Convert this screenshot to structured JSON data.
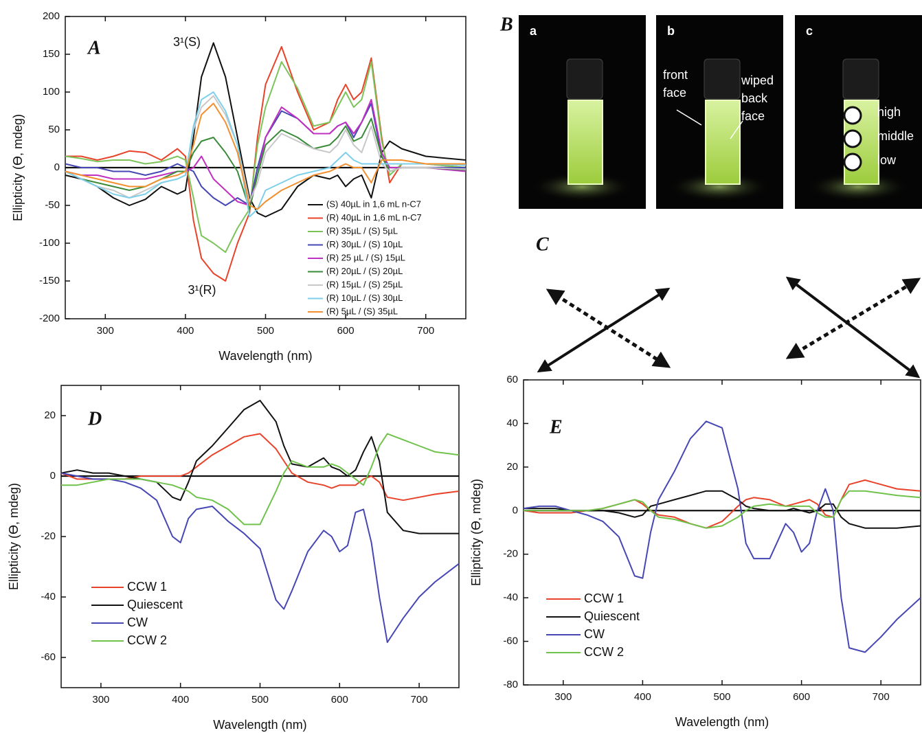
{
  "chart_data": [
    {
      "type": "line",
      "panel_label": "A",
      "x_label": "Wavelength (nm)",
      "y_label": "Ellipticity (ϴ, mdeg)",
      "annotations": [
        "3¹(S)",
        "3¹(R)"
      ],
      "xlim": [
        250,
        750
      ],
      "ylim": [
        -200,
        200
      ],
      "xticks": [
        300,
        400,
        500,
        600,
        700
      ],
      "yticks": [
        -200,
        -150,
        -100,
        -50,
        0,
        50,
        100,
        150,
        200
      ],
      "legend": "lower right",
      "x": [
        250,
        270,
        290,
        310,
        330,
        350,
        370,
        390,
        400,
        410,
        420,
        435,
        450,
        465,
        480,
        490,
        500,
        520,
        540,
        560,
        580,
        590,
        600,
        610,
        620,
        632,
        645,
        655,
        670,
        700,
        750
      ],
      "series": [
        {
          "name": "(S) 40µL in 1,6 mL n-C7",
          "color": "#111111",
          "values": [
            -10,
            -15,
            -25,
            -40,
            -50,
            -42,
            -25,
            -35,
            -30,
            40,
            120,
            165,
            120,
            40,
            -40,
            -60,
            -65,
            -55,
            -25,
            -10,
            -15,
            -10,
            -25,
            -15,
            -10,
            -40,
            20,
            35,
            25,
            15,
            10
          ]
        },
        {
          "name": "(R) 40µL in 1,6 mL n-C7",
          "color": "#e8432a",
          "values": [
            15,
            15,
            10,
            15,
            22,
            20,
            10,
            25,
            15,
            -70,
            -120,
            -140,
            -150,
            -100,
            -60,
            40,
            110,
            160,
            100,
            50,
            60,
            90,
            110,
            90,
            100,
            145,
            40,
            -20,
            5,
            5,
            0
          ]
        },
        {
          "name": "(R) 35µL / (S) 5µL",
          "color": "#7cc35a",
          "values": [
            15,
            12,
            8,
            10,
            10,
            5,
            8,
            15,
            10,
            -40,
            -90,
            -100,
            -112,
            -80,
            -55,
            30,
            80,
            140,
            105,
            55,
            60,
            80,
            100,
            80,
            90,
            140,
            35,
            -10,
            5,
            5,
            0
          ]
        },
        {
          "name": "(R) 30µL / (S) 10µL",
          "color": "#4646b4",
          "values": [
            5,
            0,
            0,
            -5,
            -5,
            -10,
            -5,
            5,
            0,
            -5,
            -25,
            -40,
            -50,
            -40,
            -50,
            0,
            40,
            75,
            65,
            45,
            45,
            55,
            60,
            40,
            60,
            85,
            15,
            -5,
            0,
            0,
            0
          ]
        },
        {
          "name": "(R) 25 µL / (S) 15µL",
          "color": "#c030c0",
          "values": [
            -5,
            -10,
            -10,
            -15,
            -15,
            -15,
            -10,
            -5,
            -5,
            0,
            15,
            -15,
            -30,
            -45,
            -50,
            -10,
            40,
            80,
            65,
            45,
            45,
            55,
            60,
            45,
            60,
            90,
            20,
            0,
            0,
            0,
            -5
          ]
        },
        {
          "name": "(R) 20µL / (S) 20µL",
          "color": "#3a8a3a",
          "values": [
            -5,
            -15,
            -20,
            -25,
            -30,
            -25,
            -15,
            -5,
            -5,
            20,
            35,
            40,
            20,
            -5,
            -55,
            -10,
            30,
            50,
            40,
            25,
            30,
            40,
            55,
            35,
            40,
            65,
            15,
            -5,
            0,
            0,
            -3
          ]
        },
        {
          "name": "(R) 15µL / (S) 25µL",
          "color": "#c8c8c8",
          "values": [
            -5,
            -15,
            -25,
            -30,
            -40,
            -30,
            -20,
            -15,
            -10,
            50,
            80,
            95,
            70,
            30,
            -45,
            -20,
            20,
            45,
            35,
            25,
            20,
            30,
            50,
            30,
            20,
            55,
            5,
            -5,
            0,
            0,
            -2
          ]
        },
        {
          "name": "(R) 10µL / (S) 30µL",
          "color": "#7ecfea",
          "values": [
            -5,
            -15,
            -25,
            -35,
            -40,
            -35,
            -20,
            -15,
            -10,
            55,
            90,
            100,
            75,
            30,
            -65,
            -55,
            -30,
            -20,
            -10,
            -5,
            0,
            10,
            20,
            10,
            5,
            5,
            5,
            5,
            5,
            5,
            3
          ]
        },
        {
          "name": "(R)   5µL / (S) 35µL",
          "color": "#f29030",
          "values": [
            -5,
            -10,
            -15,
            -20,
            -25,
            -25,
            -15,
            -10,
            -5,
            30,
            70,
            85,
            60,
            20,
            -50,
            -55,
            -45,
            -30,
            -20,
            -10,
            -5,
            0,
            5,
            0,
            0,
            -20,
            10,
            10,
            10,
            5,
            5
          ]
        }
      ]
    },
    {
      "type": "line",
      "panel_label": "D",
      "x_label": "Wavelength (nm)",
      "y_label": "Ellipticity (ϴ, mdeg)",
      "xlim": [
        250,
        750
      ],
      "ylim": [
        -70,
        30
      ],
      "xticks": [
        300,
        400,
        500,
        600,
        700
      ],
      "yticks": [
        -60,
        -40,
        -20,
        0,
        20
      ],
      "legend": "lower left",
      "x": [
        250,
        270,
        290,
        310,
        330,
        350,
        370,
        390,
        400,
        410,
        420,
        440,
        460,
        480,
        500,
        520,
        530,
        540,
        560,
        580,
        590,
        600,
        610,
        620,
        630,
        640,
        650,
        660,
        680,
        700,
        720,
        750
      ],
      "series": [
        {
          "name": "CCW 1",
          "color": "#e8432a",
          "values": [
            1,
            -1,
            -1,
            -1,
            -1,
            0,
            0,
            0,
            0,
            1,
            3,
            7,
            10,
            13,
            14,
            9,
            5,
            1,
            -2,
            -3,
            -4,
            -3,
            -3,
            -3,
            -1,
            0,
            -2,
            -7,
            -8,
            -7,
            -6,
            -5
          ]
        },
        {
          "name": "Quiescent",
          "color": "#111111",
          "values": [
            1,
            2,
            1,
            1,
            0,
            -1,
            -2,
            -7,
            -8,
            -2,
            5,
            10,
            16,
            22,
            25,
            18,
            10,
            4,
            3,
            6,
            3,
            2,
            0,
            2,
            8,
            13,
            5,
            -12,
            -18,
            -19,
            -19,
            -19
          ]
        },
        {
          "name": "CW",
          "color": "#4646b4",
          "values": [
            1,
            0,
            -1,
            -1,
            -2,
            -4,
            -8,
            -20,
            -22,
            -14,
            -11,
            -10,
            -15,
            -19,
            -24,
            -41,
            -44,
            -38,
            -25,
            -18,
            -20,
            -25,
            -23,
            -12,
            -11,
            -22,
            -40,
            -55,
            -47,
            -40,
            -35,
            -29
          ]
        },
        {
          "name": "CCW 2",
          "color": "#6fc24a",
          "values": [
            -3,
            -3,
            -2,
            -1,
            -1,
            -1,
            -2,
            -3,
            -4,
            -5,
            -7,
            -8,
            -11,
            -16,
            -16,
            -5,
            1,
            5,
            3,
            3,
            4,
            3,
            1,
            -1,
            -3,
            3,
            10,
            14,
            12,
            10,
            8,
            7
          ]
        }
      ]
    },
    {
      "type": "line",
      "panel_label": "E",
      "x_label": "Wavelength (nm)",
      "y_label": "Ellipticity (ϴ, mdeg)",
      "xlim": [
        250,
        750
      ],
      "ylim": [
        -80,
        60
      ],
      "xticks": [
        300,
        400,
        500,
        600,
        700
      ],
      "yticks": [
        -80,
        -60,
        -40,
        -20,
        0,
        20,
        40,
        60
      ],
      "legend": "lower left",
      "x": [
        250,
        270,
        290,
        310,
        330,
        350,
        370,
        390,
        400,
        410,
        420,
        440,
        460,
        480,
        500,
        520,
        530,
        540,
        560,
        580,
        590,
        600,
        610,
        620,
        630,
        640,
        650,
        660,
        680,
        700,
        720,
        750
      ],
      "series": [
        {
          "name": "CCW 1",
          "color": "#e8432a",
          "values": [
            0,
            -1,
            -1,
            -1,
            0,
            1,
            3,
            5,
            3,
            0,
            -2,
            -3,
            -6,
            -8,
            -5,
            2,
            5,
            6,
            5,
            2,
            3,
            4,
            5,
            3,
            -2,
            -3,
            5,
            12,
            14,
            12,
            10,
            9
          ]
        },
        {
          "name": "Quiescent",
          "color": "#111111",
          "values": [
            1,
            1,
            1,
            0,
            0,
            0,
            -1,
            -3,
            -2,
            2,
            3,
            5,
            7,
            9,
            9,
            5,
            2,
            1,
            0,
            0,
            1,
            0,
            -1,
            0,
            3,
            3,
            -3,
            -6,
            -8,
            -8,
            -8,
            -7
          ]
        },
        {
          "name": "CW",
          "color": "#4646b4",
          "values": [
            1,
            2,
            2,
            0,
            -2,
            -5,
            -12,
            -30,
            -31,
            -10,
            5,
            18,
            33,
            41,
            38,
            10,
            -15,
            -22,
            -22,
            -6,
            -10,
            -19,
            -15,
            0,
            10,
            0,
            -40,
            -63,
            -65,
            -58,
            -50,
            -40
          ]
        },
        {
          "name": "CCW 2",
          "color": "#6fc24a",
          "values": [
            0,
            0,
            0,
            0,
            0,
            1,
            3,
            5,
            4,
            0,
            -3,
            -4,
            -6,
            -8,
            -7,
            -3,
            0,
            2,
            3,
            2,
            2,
            2,
            2,
            -1,
            -3,
            -3,
            5,
            9,
            9,
            8,
            7,
            6
          ]
        }
      ]
    }
  ],
  "photos": {
    "panel_label": "B",
    "items": [
      {
        "label": "a",
        "notes": []
      },
      {
        "label": "b",
        "notes": [
          [
            "front",
            "face"
          ],
          [
            "wiped",
            "back",
            "face"
          ]
        ]
      },
      {
        "label": "c",
        "notes": [
          [
            "high"
          ],
          [
            "middle"
          ],
          [
            "low"
          ]
        ]
      }
    ]
  },
  "polarization": {
    "panel_label": "C"
  }
}
